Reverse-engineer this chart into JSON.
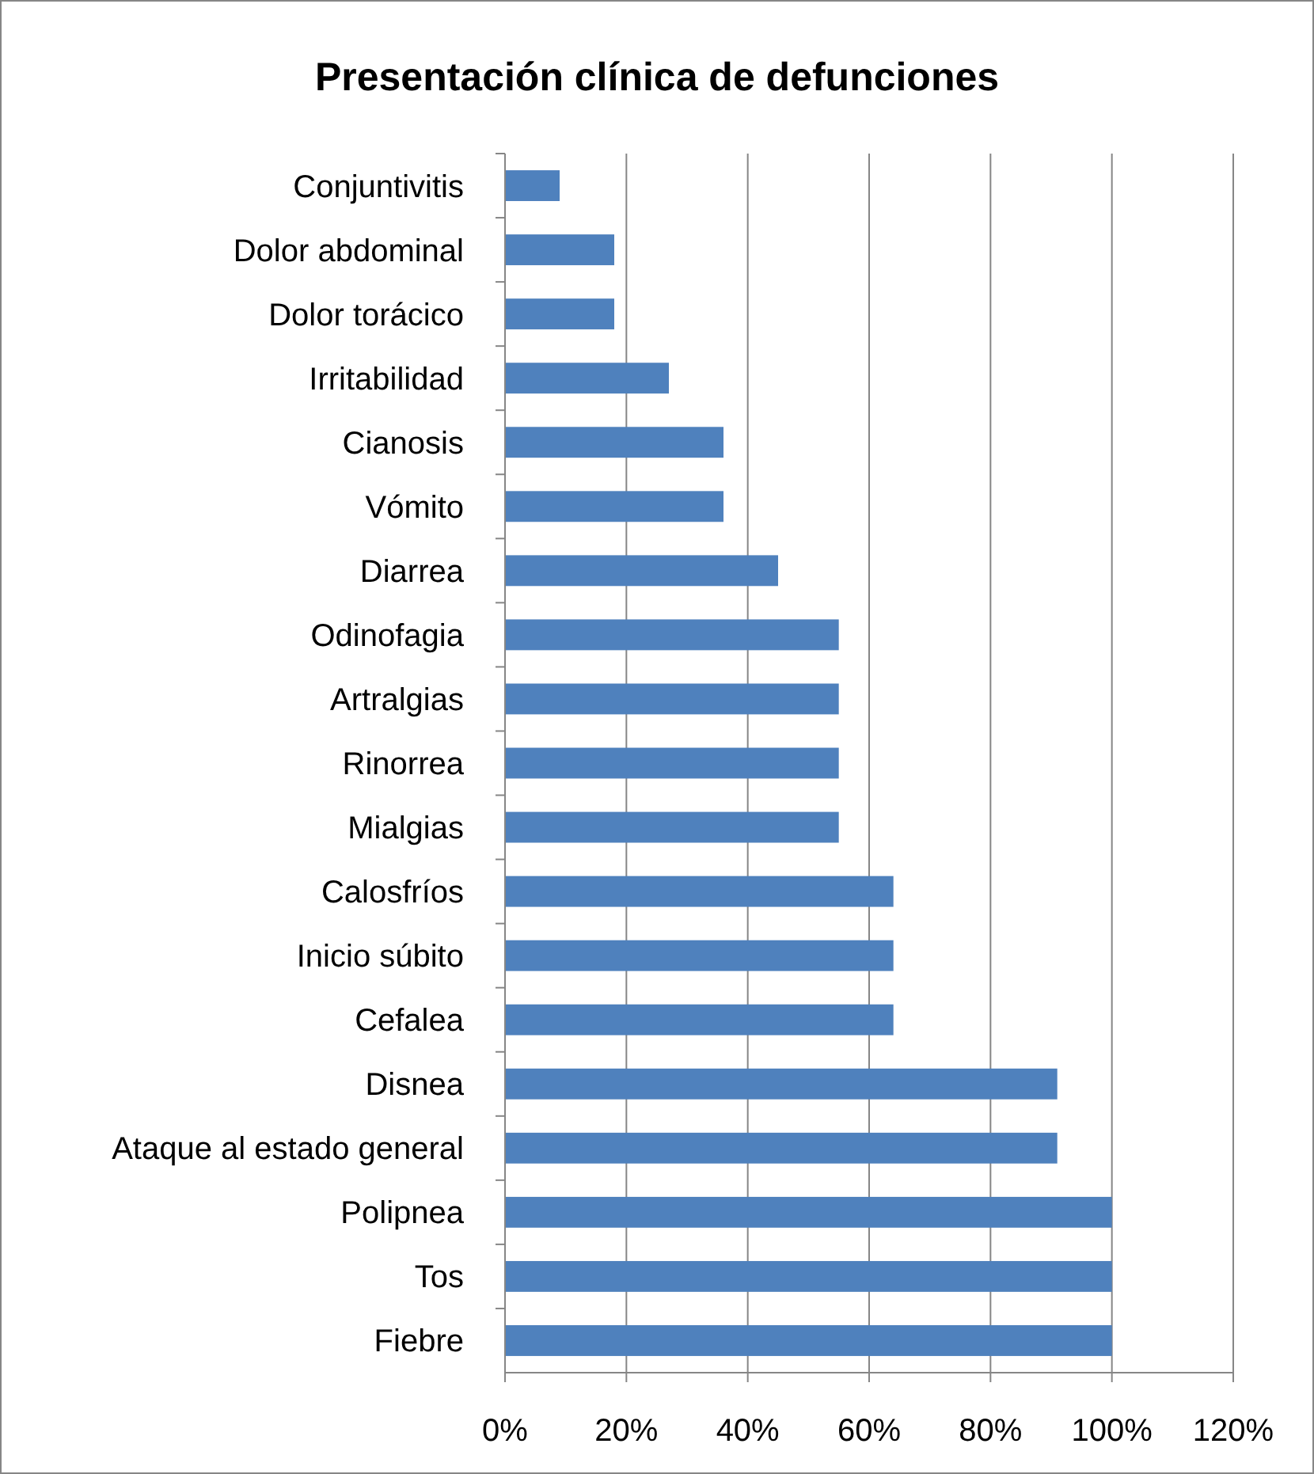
{
  "chart_data": {
    "type": "bar",
    "orientation": "horizontal",
    "title": "Presentación clínica de defunciones",
    "categories": [
      "Conjuntivitis",
      "Dolor abdominal",
      "Dolor torácico",
      "Irritabilidad",
      "Cianosis",
      "Vómito",
      "Diarrea",
      "Odinofagia",
      "Artralgias",
      "Rinorrea",
      "Mialgias",
      "Calosfríos",
      "Inicio súbito",
      "Cefalea",
      "Disnea",
      "Ataque al estado general",
      "Polipnea",
      "Tos",
      "Fiebre"
    ],
    "values": [
      9,
      18,
      18,
      27,
      36,
      36,
      45,
      55,
      55,
      55,
      55,
      64,
      64,
      64,
      91,
      91,
      100,
      100,
      100
    ],
    "color": "#4f81bd",
    "xlim": [
      0,
      120
    ],
    "xticks": [
      {
        "value": 0,
        "label": "0%"
      },
      {
        "value": 20,
        "label": "20%"
      },
      {
        "value": 40,
        "label": "40%"
      },
      {
        "value": 60,
        "label": "60%"
      },
      {
        "value": 80,
        "label": "80%"
      },
      {
        "value": 100,
        "label": "100%"
      },
      {
        "value": 120,
        "label": "120%"
      }
    ],
    "grid": "x"
  }
}
